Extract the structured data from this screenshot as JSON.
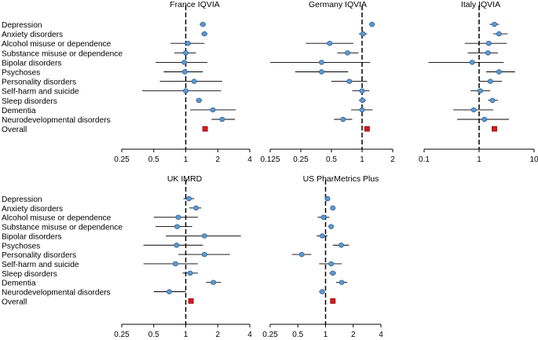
{
  "chart_data": {
    "type": "forest",
    "scale": "log",
    "reference_line": 1,
    "row_labels": [
      "Depression",
      "Anxiety disorders",
      "Alcohol misuse or dependence",
      "Substance misuse or dependence",
      "Bipolar disorders",
      "Psychoses",
      "Personality disorders",
      "Self-harm and suicide",
      "Sleep disorders",
      "Dementia",
      "Neurodevelopmental disorders",
      "Overall"
    ],
    "overall_row": "Overall",
    "panels": [
      {
        "title": "France IQVIA",
        "ticks": [
          0.25,
          0.5,
          1,
          2,
          4
        ],
        "tick_labels": [
          "0.25",
          "0.5",
          "1",
          "2",
          "4"
        ],
        "xlim": [
          0.25,
          4
        ],
        "estimates": [
          {
            "est": 1.45,
            "lo": 1.35,
            "hi": 1.55
          },
          {
            "est": 1.5,
            "lo": 1.4,
            "hi": 1.6
          },
          {
            "est": 1.05,
            "lo": 0.72,
            "hi": 1.5
          },
          {
            "est": 1.0,
            "lo": 0.78,
            "hi": 1.25
          },
          {
            "est": 0.97,
            "lo": 0.52,
            "hi": 1.6
          },
          {
            "est": 0.98,
            "lo": 0.62,
            "hi": 1.45
          },
          {
            "est": 1.2,
            "lo": 0.57,
            "hi": 2.2
          },
          {
            "est": 1.0,
            "lo": 0.39,
            "hi": 2.15
          },
          {
            "est": 1.33,
            "lo": 1.25,
            "hi": 1.42
          },
          {
            "est": 1.8,
            "lo": 1.1,
            "hi": 2.95
          },
          {
            "est": 2.2,
            "lo": 1.75,
            "hi": 2.9
          },
          {
            "est": 1.52,
            "lo": 1.47,
            "hi": 1.57
          }
        ]
      },
      {
        "title": "Germany IQVIA",
        "ticks": [
          0.125,
          0.25,
          0.5,
          1,
          2
        ],
        "tick_labels": [
          "0.125",
          "0.25",
          "0.5",
          "1",
          "2"
        ],
        "xlim": [
          0.125,
          2
        ],
        "estimates": [
          {
            "est": 1.25,
            "lo": 1.18,
            "hi": 1.32
          },
          {
            "est": 1.02,
            "lo": 0.93,
            "hi": 1.12
          },
          {
            "est": 0.48,
            "lo": 0.28,
            "hi": 0.82
          },
          {
            "est": 0.72,
            "lo": 0.57,
            "hi": 0.92
          },
          {
            "est": 0.4,
            "lo": 0.125,
            "hi": 1.2
          },
          {
            "est": 0.4,
            "lo": 0.22,
            "hi": 0.73
          },
          {
            "est": 0.75,
            "lo": 0.5,
            "hi": 1.12
          },
          {
            "est": 1.0,
            "lo": 0.8,
            "hi": 1.18
          },
          {
            "est": 1.01,
            "lo": 0.93,
            "hi": 1.09
          },
          {
            "est": 1.0,
            "lo": 0.78,
            "hi": 1.27
          },
          {
            "est": 0.65,
            "lo": 0.53,
            "hi": 0.8
          },
          {
            "est": 1.12,
            "lo": 1.08,
            "hi": 1.16
          }
        ]
      },
      {
        "title": "Italy IQVIA",
        "ticks": [
          0.1,
          1,
          10
        ],
        "tick_labels": [
          "0.1",
          "1",
          "10"
        ],
        "xlim": [
          0.1,
          10
        ],
        "estimates": [
          {
            "est": 1.9,
            "lo": 1.55,
            "hi": 2.3
          },
          {
            "est": 2.3,
            "lo": 1.8,
            "hi": 3.3
          },
          {
            "est": 1.5,
            "lo": 0.55,
            "hi": 3.2
          },
          {
            "est": 1.45,
            "lo": 0.62,
            "hi": 2.2
          },
          {
            "est": 0.75,
            "lo": 0.12,
            "hi": 2.8
          },
          {
            "est": 2.3,
            "lo": 1.35,
            "hi": 4.5
          },
          {
            "est": 1.6,
            "lo": 1.0,
            "hi": 2.6
          },
          {
            "est": 1.05,
            "lo": 0.7,
            "hi": 1.6
          },
          {
            "est": 1.75,
            "lo": 1.45,
            "hi": 2.2
          },
          {
            "est": 0.8,
            "lo": 0.34,
            "hi": 1.8
          },
          {
            "est": 1.25,
            "lo": 0.4,
            "hi": 3.5
          },
          {
            "est": 1.9,
            "lo": 1.8,
            "hi": 2.0
          }
        ]
      },
      {
        "title": "UK IMRD",
        "ticks": [
          0.25,
          0.5,
          1,
          2,
          4
        ],
        "tick_labels": [
          "0.25",
          "0.5",
          "1",
          "2",
          "4"
        ],
        "xlim": [
          0.25,
          4
        ],
        "estimates": [
          {
            "est": 1.07,
            "lo": 0.95,
            "hi": 1.2
          },
          {
            "est": 1.25,
            "lo": 1.08,
            "hi": 1.4
          },
          {
            "est": 0.85,
            "lo": 0.5,
            "hi": 1.3
          },
          {
            "est": 0.83,
            "lo": 0.52,
            "hi": 1.15
          },
          {
            "est": 1.5,
            "lo": 0.65,
            "hi": 3.3
          },
          {
            "est": 0.82,
            "lo": 0.4,
            "hi": 1.45
          },
          {
            "est": 1.5,
            "lo": 0.85,
            "hi": 2.6
          },
          {
            "est": 0.8,
            "lo": 0.4,
            "hi": 1.3
          },
          {
            "est": 1.1,
            "lo": 0.93,
            "hi": 1.3
          },
          {
            "est": 1.82,
            "lo": 1.55,
            "hi": 2.15
          },
          {
            "est": 0.7,
            "lo": 0.5,
            "hi": 1.0
          },
          {
            "est": 1.12,
            "lo": 1.06,
            "hi": 1.18
          }
        ]
      },
      {
        "title": "US PharMetrics Plus",
        "ticks": [
          0.25,
          0.5,
          1,
          2,
          4
        ],
        "tick_labels": [
          "0.25",
          "0.5",
          "1",
          "2",
          "4"
        ],
        "xlim": [
          0.25,
          4
        ],
        "estimates": [
          {
            "est": 1.05,
            "lo": 1.0,
            "hi": 1.1
          },
          {
            "est": 1.2,
            "lo": 1.14,
            "hi": 1.26
          },
          {
            "est": 0.95,
            "lo": 0.82,
            "hi": 1.1
          },
          {
            "est": 1.15,
            "lo": 1.08,
            "hi": 1.22
          },
          {
            "est": 0.92,
            "lo": 0.8,
            "hi": 1.05
          },
          {
            "est": 1.48,
            "lo": 1.2,
            "hi": 1.8
          },
          {
            "est": 0.55,
            "lo": 0.43,
            "hi": 0.7
          },
          {
            "est": 1.15,
            "lo": 0.85,
            "hi": 1.5
          },
          {
            "est": 1.2,
            "lo": 1.1,
            "hi": 1.3
          },
          {
            "est": 1.5,
            "lo": 1.3,
            "hi": 1.72
          },
          {
            "est": 0.92,
            "lo": 0.85,
            "hi": 0.98
          },
          {
            "est": 1.2,
            "lo": 1.16,
            "hi": 1.24
          }
        ]
      }
    ]
  },
  "colors": {
    "estimate_fill": "#5b9bd5",
    "estimate_stroke": "#2f5f8f",
    "overall_fill": "#d7191c",
    "overall_stroke": "#8b0000",
    "line": "#000000"
  }
}
